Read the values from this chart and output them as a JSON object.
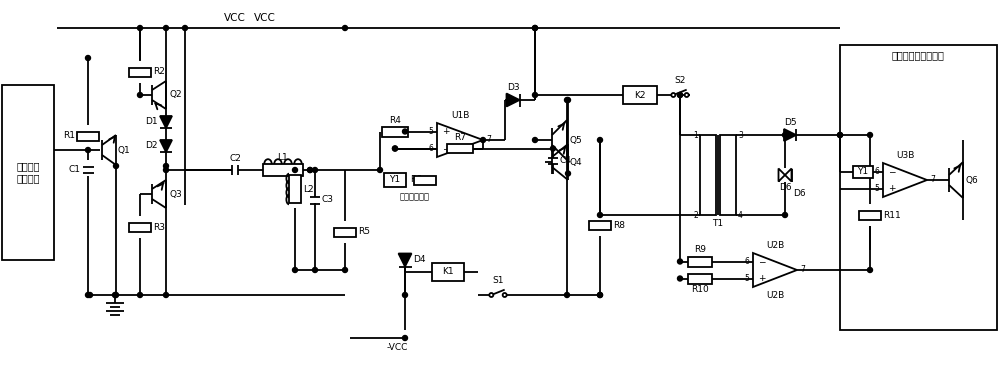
{
  "bg": "#ffffff",
  "lc": "#000000",
  "lw": 1.3,
  "fs": 6.5,
  "label_left": "声学信号\n采集模块",
  "label_right": "声学信号预处理模块",
  "VCC": "VCC",
  "neg_VCC": "-VCC",
  "std_signal": "标准声学信号"
}
